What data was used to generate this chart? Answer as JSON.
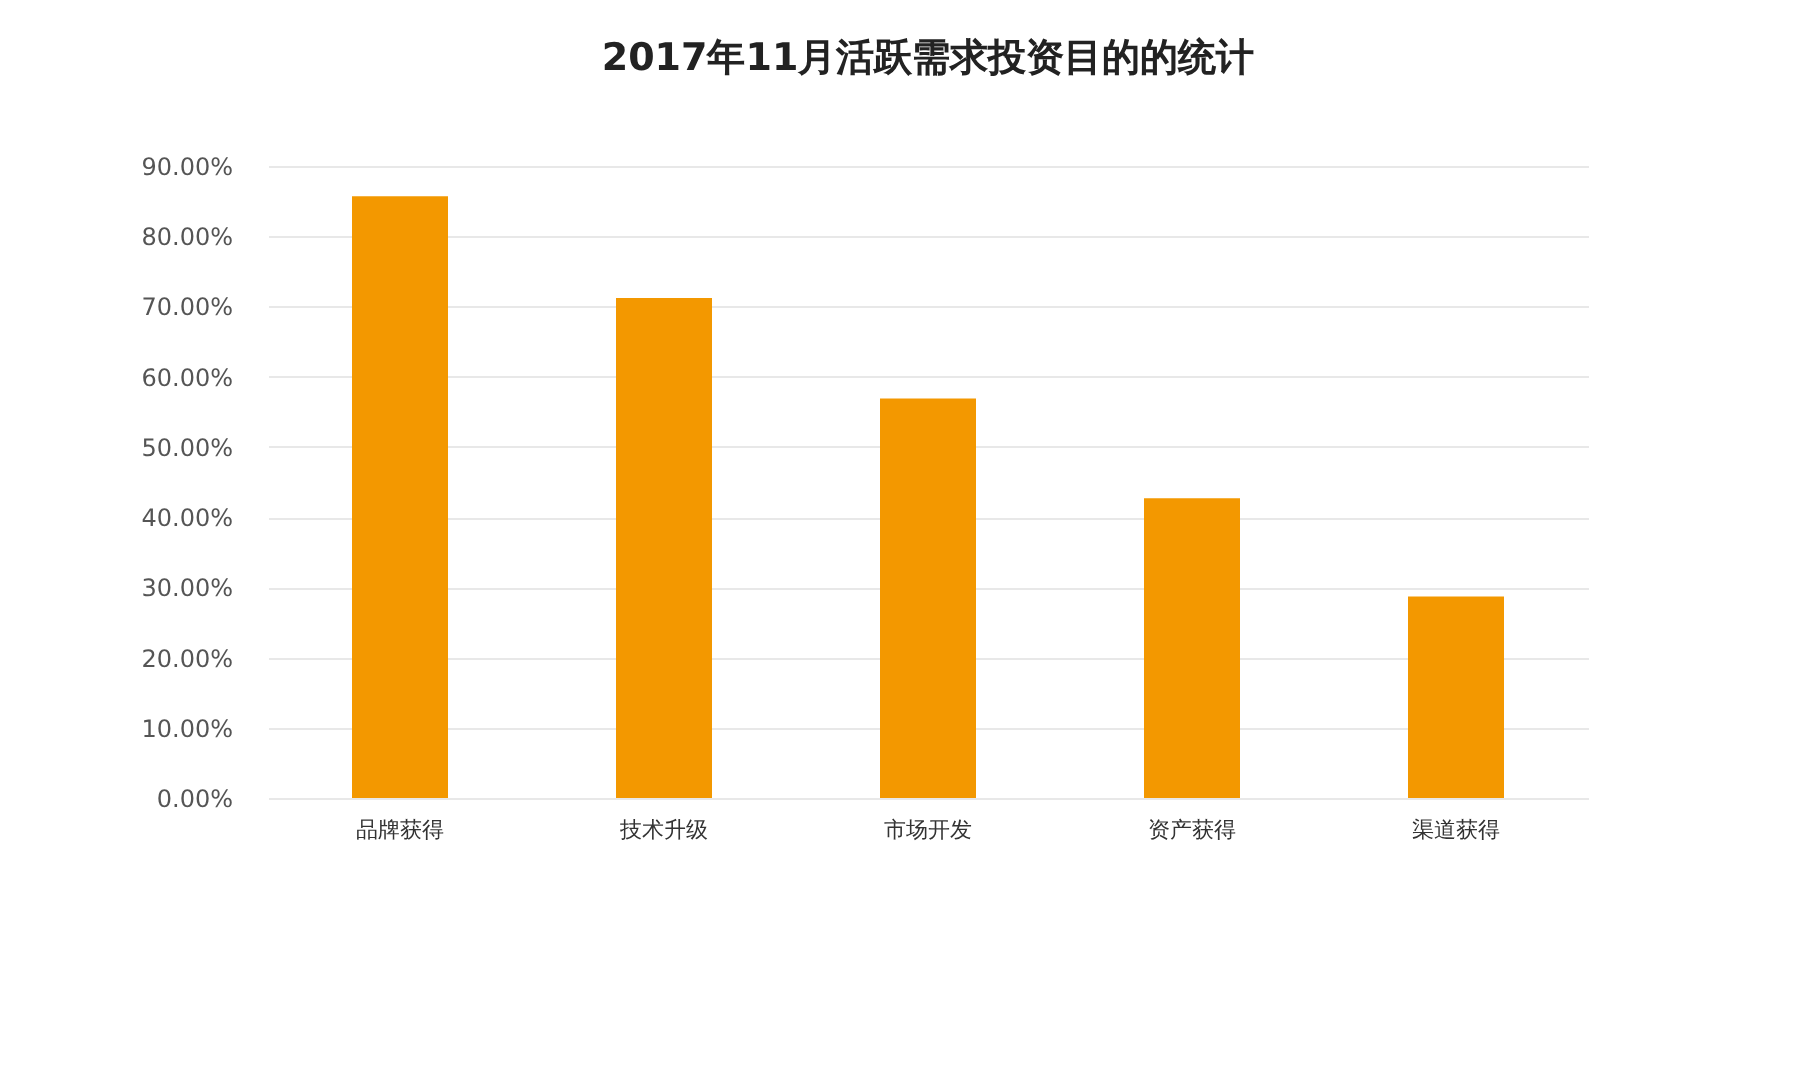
{
  "chart_data": {
    "type": "bar",
    "title": "2017年11月活跃需求投资目的的统计",
    "categories": [
      "品牌获得",
      "技术升级",
      "市场开发",
      "资产获得",
      "渠道获得"
    ],
    "values": [
      85.7,
      71.2,
      56.9,
      42.7,
      28.7
    ],
    "color": "#f39800",
    "ylim": [
      0,
      90
    ],
    "yticks": [
      {
        "value": 0,
        "label": "0.00%"
      },
      {
        "value": 10,
        "label": "10.00%"
      },
      {
        "value": 20,
        "label": "20.00%"
      },
      {
        "value": 30,
        "label": "30.00%"
      },
      {
        "value": 40,
        "label": "40.00%"
      },
      {
        "value": 50,
        "label": "50.00%"
      },
      {
        "value": 60,
        "label": "60.00%"
      },
      {
        "value": 70,
        "label": "70.00%"
      },
      {
        "value": 80,
        "label": "80.00%"
      },
      {
        "value": 90,
        "label": "90.00%"
      }
    ],
    "grid": "y"
  }
}
